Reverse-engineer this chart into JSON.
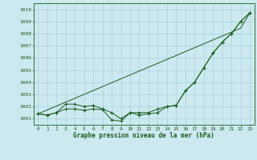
{
  "xlabel": "Graphe pression niveau de la mer (hPa)",
  "bg_color": "#cce9f0",
  "grid_color": "#aad0dc",
  "line_color": "#1a5c1a",
  "x": [
    0,
    1,
    2,
    3,
    4,
    5,
    6,
    7,
    8,
    9,
    10,
    11,
    12,
    13,
    14,
    15,
    16,
    17,
    18,
    19,
    20,
    21,
    22,
    23
  ],
  "y_zigzag": [
    1001.4,
    1001.3,
    1001.5,
    1001.8,
    1001.8,
    1001.7,
    1001.8,
    1001.75,
    1000.9,
    1000.8,
    1001.5,
    1001.3,
    1001.4,
    1001.5,
    1002.0,
    1002.1,
    1003.3,
    1004.0,
    1005.2,
    1006.4,
    1007.3,
    1008.0,
    1009.0,
    1009.7
  ],
  "y_smooth": [
    1001.4,
    1001.3,
    1001.5,
    1002.2,
    1002.2,
    1002.0,
    1002.1,
    1001.8,
    1001.5,
    1001.0,
    1001.5,
    1001.5,
    1001.5,
    1001.8,
    1002.0,
    1002.1,
    1003.3,
    1004.0,
    1005.2,
    1006.4,
    1007.3,
    1008.0,
    1009.0,
    1009.7
  ],
  "y_linear": [
    1001.4,
    1001.72,
    1002.04,
    1002.36,
    1002.68,
    1003.0,
    1003.32,
    1003.64,
    1003.96,
    1004.28,
    1004.6,
    1004.92,
    1005.24,
    1005.56,
    1005.88,
    1006.2,
    1006.52,
    1006.84,
    1007.16,
    1007.48,
    1007.8,
    1008.12,
    1008.44,
    1009.7
  ],
  "ylim": [
    1000.5,
    1010.5
  ],
  "yticks": [
    1001,
    1002,
    1003,
    1004,
    1005,
    1006,
    1007,
    1008,
    1009,
    1010
  ],
  "figsize": [
    3.2,
    2.0
  ],
  "dpi": 100
}
